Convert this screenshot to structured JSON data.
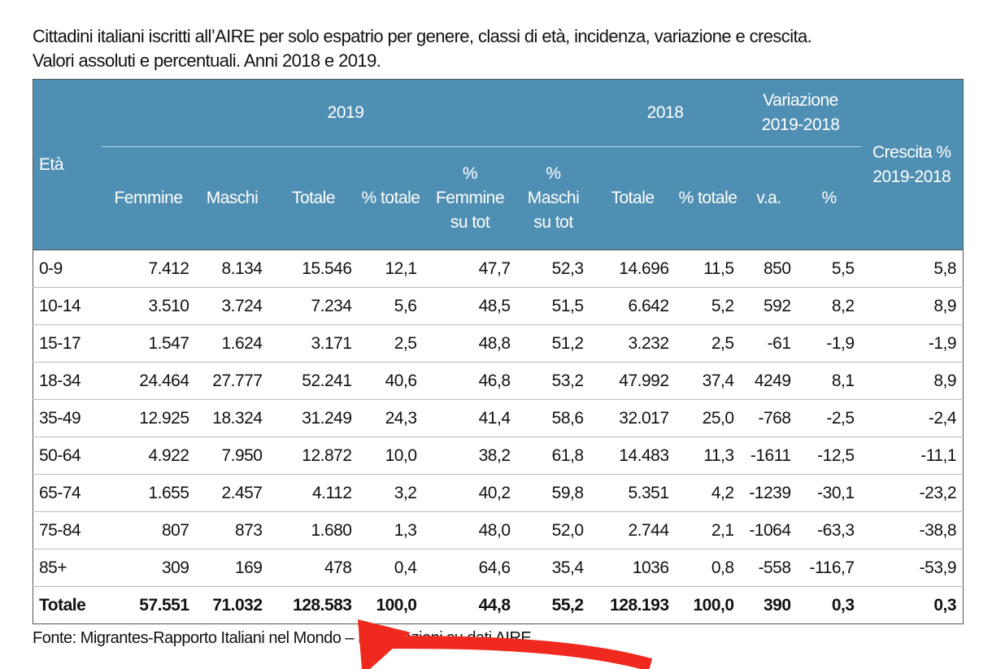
{
  "title_line1": "Cittadini italiani iscritti all’AIRE per solo espatrio per genere, classi di età, incidenza, variazione e crescita.",
  "title_line2": "Valori assoluti e percentuali. Anni 2018 e 2019.",
  "header": {
    "eta": "Età",
    "y2019": "2019",
    "y2018": "2018",
    "variazione": "Variazione 2019-2018",
    "crescita": "Crescita % 2019-2018",
    "columns": [
      "Femmine",
      "Maschi",
      "Totale",
      "% totale",
      "% Femmine su tot",
      "% Maschi su tot",
      "Totale",
      "% totale",
      "v.a.",
      "%"
    ]
  },
  "rows": [
    [
      "0-9",
      "7.412",
      "8.134",
      "15.546",
      "12,1",
      "47,7",
      "52,3",
      "14.696",
      "11,5",
      "850",
      "5,5",
      "5,8"
    ],
    [
      "10-14",
      "3.510",
      "3.724",
      "7.234",
      "5,6",
      "48,5",
      "51,5",
      "6.642",
      "5,2",
      "592",
      "8,2",
      "8,9"
    ],
    [
      "15-17",
      "1.547",
      "1.624",
      "3.171",
      "2,5",
      "48,8",
      "51,2",
      "3.232",
      "2,5",
      "-61",
      "-1,9",
      "-1,9"
    ],
    [
      "18-34",
      "24.464",
      "27.777",
      "52.241",
      "40,6",
      "46,8",
      "53,2",
      "47.992",
      "37,4",
      "4249",
      "8,1",
      "8,9"
    ],
    [
      "35-49",
      "12.925",
      "18.324",
      "31.249",
      "24,3",
      "41,4",
      "58,6",
      "32.017",
      "25,0",
      "-768",
      "-2,5",
      "-2,4"
    ],
    [
      "50-64",
      "4.922",
      "7.950",
      "12.872",
      "10,0",
      "38,2",
      "61,8",
      "14.483",
      "11,3",
      "-1611",
      "-12,5",
      "-11,1"
    ],
    [
      "65-74",
      "1.655",
      "2.457",
      "4.112",
      "3,2",
      "40,2",
      "59,8",
      "5.351",
      "4,2",
      "-1239",
      "-30,1",
      "-23,2"
    ],
    [
      "75-84",
      "807",
      "873",
      "1.680",
      "1,3",
      "48,0",
      "52,0",
      "2.744",
      "2,1",
      "-1064",
      "-63,3",
      "-38,8"
    ],
    [
      "85+",
      "309",
      "169",
      "478",
      "0,4",
      "64,6",
      "35,4",
      "1036",
      "0,8",
      "-558",
      "-116,7",
      "-53,9"
    ],
    [
      "Totale",
      "57.551",
      "71.032",
      "128.583",
      "100,0",
      "44,8",
      "55,2",
      "128.193",
      "100,0",
      "390",
      "0,3",
      "0,3"
    ]
  ],
  "source": "Fonte: Migrantes-Rapporto Italiani nel Mondo – Elaborazioni su dati AIRE.",
  "colors": {
    "header_bg": "#4f8fb3",
    "arrow": "#f0291e"
  }
}
